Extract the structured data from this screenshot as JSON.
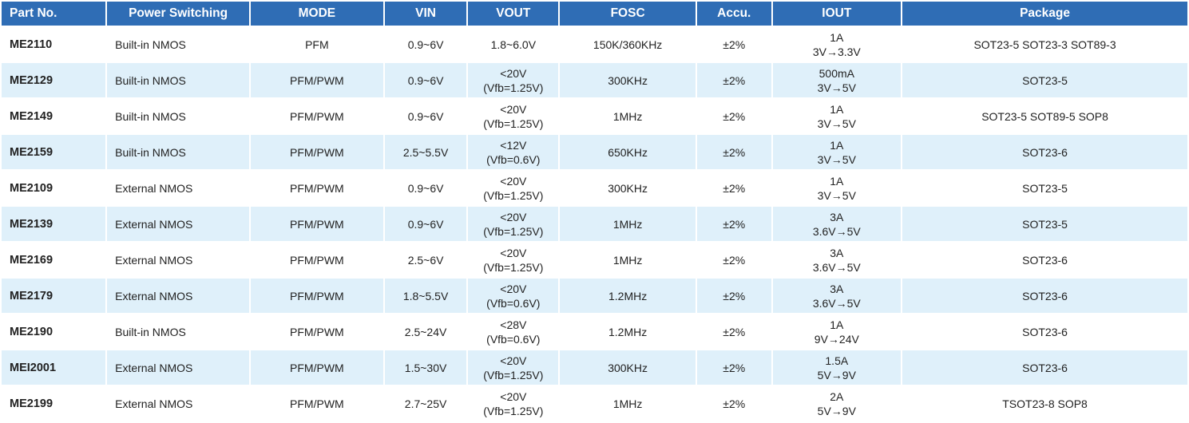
{
  "headers": [
    "Part No.",
    "Power Switching",
    "MODE",
    "VIN",
    "VOUT",
    "FOSC",
    "Accu.",
    "IOUT",
    "Package"
  ],
  "rows": [
    {
      "part": "ME2110",
      "switching": "Built-in NMOS",
      "mode": "PFM",
      "vin": "0.9~6V",
      "vout": [
        "1.8~6.0V"
      ],
      "fosc": "150K/360KHz",
      "accu": "±2%",
      "iout": [
        "1A",
        "3V→3.3V"
      ],
      "package": "SOT23-5 SOT23-3 SOT89-3"
    },
    {
      "part": "ME2129",
      "switching": "Built-in NMOS",
      "mode": "PFM/PWM",
      "vin": "0.9~6V",
      "vout": [
        "<20V",
        "(Vfb=1.25V)"
      ],
      "fosc": "300KHz",
      "accu": "±2%",
      "iout": [
        "500mA",
        "3V→5V"
      ],
      "package": "SOT23-5"
    },
    {
      "part": "ME2149",
      "switching": "Built-in NMOS",
      "mode": "PFM/PWM",
      "vin": "0.9~6V",
      "vout": [
        "<20V",
        "(Vfb=1.25V)"
      ],
      "fosc": "1MHz",
      "accu": "±2%",
      "iout": [
        "1A",
        "3V→5V"
      ],
      "package": "SOT23-5 SOT89-5 SOP8"
    },
    {
      "part": "ME2159",
      "switching": "Built-in NMOS",
      "mode": "PFM/PWM",
      "vin": "2.5~5.5V",
      "vout": [
        "<12V",
        "(Vfb=0.6V)"
      ],
      "fosc": "650KHz",
      "accu": "±2%",
      "iout": [
        "1A",
        "3V→5V"
      ],
      "package": "SOT23-6"
    },
    {
      "part": "ME2109",
      "switching": "External NMOS",
      "mode": "PFM/PWM",
      "vin": "0.9~6V",
      "vout": [
        "<20V",
        "(Vfb=1.25V)"
      ],
      "fosc": "300KHz",
      "accu": "±2%",
      "iout": [
        "1A",
        "3V→5V"
      ],
      "package": "SOT23-5"
    },
    {
      "part": "ME2139",
      "switching": "External NMOS",
      "mode": "PFM/PWM",
      "vin": "0.9~6V",
      "vout": [
        "<20V",
        "(Vfb=1.25V)"
      ],
      "fosc": "1MHz",
      "accu": "±2%",
      "iout": [
        "3A",
        "3.6V→5V"
      ],
      "package": "SOT23-5"
    },
    {
      "part": "ME2169",
      "switching": "External NMOS",
      "mode": "PFM/PWM",
      "vin": "2.5~6V",
      "vout": [
        "<20V",
        "(Vfb=1.25V)"
      ],
      "fosc": "1MHz",
      "accu": "±2%",
      "iout": [
        "3A",
        "3.6V→5V"
      ],
      "package": "SOT23-6"
    },
    {
      "part": "ME2179",
      "switching": "External NMOS",
      "mode": "PFM/PWM",
      "vin": "1.8~5.5V",
      "vout": [
        "<20V",
        "(Vfb=0.6V)"
      ],
      "fosc": "1.2MHz",
      "accu": "±2%",
      "iout": [
        "3A",
        "3.6V→5V"
      ],
      "package": "SOT23-6"
    },
    {
      "part": "ME2190",
      "switching": "Built-in NMOS",
      "mode": "PFM/PWM",
      "vin": "2.5~24V",
      "vout": [
        "<28V",
        "(Vfb=0.6V)"
      ],
      "fosc": "1.2MHz",
      "accu": "±2%",
      "iout": [
        "1A",
        "9V→24V"
      ],
      "package": "SOT23-6"
    },
    {
      "part": "MEI2001",
      "switching": "External NMOS",
      "mode": "PFM/PWM",
      "vin": "1.5~30V",
      "vout": [
        "<20V",
        "(Vfb=1.25V)"
      ],
      "fosc": "300KHz",
      "accu": "±2%",
      "iout": [
        "1.5A",
        "5V→9V"
      ],
      "package": "SOT23-6"
    },
    {
      "part": "ME2199",
      "switching": "External NMOS",
      "mode": "PFM/PWM",
      "vin": "2.7~25V",
      "vout": [
        "<20V",
        "(Vfb=1.25V)"
      ],
      "fosc": "1MHz",
      "accu": "±2%",
      "iout": [
        "2A",
        "5V→9V"
      ],
      "package": "TSOT23-8 SOP8"
    }
  ],
  "colors": {
    "header_bg": "#2f6db5",
    "header_text": "#ffffff",
    "alt_row_bg": "#dff0fa"
  }
}
